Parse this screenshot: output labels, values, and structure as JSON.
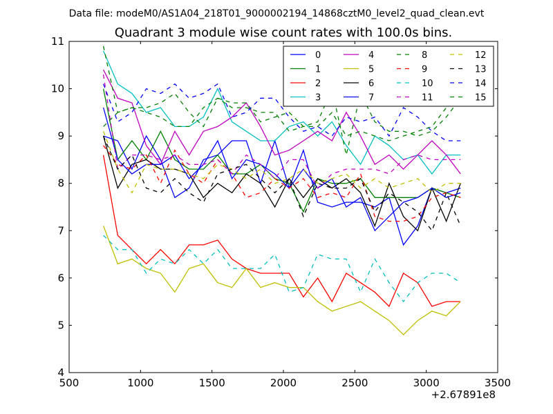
{
  "chart_data": {
    "type": "line",
    "suptitle": "Data file: modeM0/AS1A04_218T01_9000002194_14868cztM0_level2_quad_clean.evt",
    "title": "Quadrant 3 module wise count rates with 100.0s bins.",
    "xlabel": "",
    "ylabel": "",
    "x_offset_label": "+2.67891e8",
    "xlim": [
      500,
      3500
    ],
    "ylim": [
      4,
      11
    ],
    "x_ticks": [
      500,
      1000,
      1500,
      2000,
      2500,
      3000,
      3500
    ],
    "y_ticks": [
      4,
      5,
      6,
      7,
      8,
      9,
      10,
      11
    ],
    "legend_position": "top-right",
    "grid": false,
    "x": [
      740,
      840,
      940,
      1040,
      1140,
      1240,
      1340,
      1440,
      1540,
      1640,
      1740,
      1840,
      1940,
      2040,
      2140,
      2240,
      2340,
      2440,
      2540,
      2640,
      2740,
      2840,
      2940,
      3040,
      3140,
      3240
    ],
    "series": [
      {
        "name": "0",
        "color": "#0000ff",
        "dash": false,
        "values": [
          9.0,
          8.9,
          8.3,
          9.0,
          8.5,
          7.7,
          7.9,
          8.5,
          8.6,
          8.9,
          8.9,
          8.0,
          8.9,
          7.9,
          8.7,
          7.6,
          7.5,
          7.6,
          7.6,
          7.5,
          7.7,
          6.7,
          7.1,
          7.9,
          7.8,
          7.9
        ]
      },
      {
        "name": "1",
        "color": "#008000",
        "dash": false,
        "values": [
          10.0,
          8.5,
          8.9,
          8.5,
          9.1,
          8.5,
          8.3,
          8.3,
          8.6,
          8.2,
          8.2,
          8.4,
          8.1,
          8.0,
          7.4,
          8.1,
          8.0,
          8.0,
          8.1,
          7.7,
          7.7,
          7.7,
          7.7,
          7.9,
          7.8,
          7.7
        ]
      },
      {
        "name": "2",
        "color": "#ff0000",
        "dash": false,
        "values": [
          8.6,
          6.9,
          6.6,
          6.3,
          6.6,
          6.3,
          6.7,
          6.7,
          6.8,
          6.4,
          6.2,
          6.1,
          6.1,
          6.1,
          5.6,
          6.0,
          5.5,
          6.1,
          5.9,
          5.7,
          5.4,
          6.1,
          5.9,
          5.4,
          5.5,
          5.5
        ]
      },
      {
        "name": "3",
        "color": "#00bfbf",
        "dash": false,
        "values": [
          10.8,
          10.1,
          9.9,
          9.5,
          9.6,
          9.2,
          9.2,
          9.4,
          10.0,
          9.3,
          9.1,
          8.9,
          8.9,
          9.2,
          9.3,
          9.0,
          9.3,
          8.8,
          8.4,
          9.0,
          8.8,
          8.5,
          8.6,
          8.2,
          8.6,
          8.6
        ]
      },
      {
        "name": "4",
        "color": "#bf00bf",
        "dash": false,
        "values": [
          10.4,
          9.8,
          9.7,
          8.8,
          8.4,
          9.1,
          8.6,
          9.1,
          9.2,
          9.4,
          9.7,
          9.2,
          8.6,
          8.7,
          8.9,
          9.1,
          8.9,
          9.5,
          9.0,
          8.4,
          8.6,
          8.3,
          8.6,
          8.9,
          8.6,
          8.2
        ]
      },
      {
        "name": "5",
        "color": "#bfbf00",
        "dash": false,
        "values": [
          7.1,
          6.3,
          6.4,
          6.2,
          6.1,
          5.7,
          6.2,
          6.3,
          5.9,
          5.8,
          6.2,
          5.8,
          5.9,
          5.8,
          5.8,
          5.5,
          5.3,
          5.4,
          5.5,
          5.3,
          5.1,
          4.8,
          5.1,
          5.3,
          5.2,
          5.5
        ]
      },
      {
        "name": "6",
        "color": "#000000",
        "dash": false,
        "values": [
          9.0,
          7.9,
          8.4,
          8.5,
          8.3,
          8.3,
          8.2,
          7.7,
          8.0,
          7.8,
          8.2,
          8.0,
          7.5,
          8.1,
          7.7,
          8.1,
          7.9,
          8.1,
          7.8,
          7.1,
          8.0,
          7.3,
          7.0,
          7.9,
          7.2,
          8.0
        ]
      },
      {
        "name": "7",
        "color": "#0000ff",
        "dash": false,
        "values": [
          9.6,
          8.5,
          8.2,
          8.4,
          8.4,
          8.6,
          8.1,
          8.4,
          8.9,
          8.1,
          8.5,
          8.4,
          8.2,
          7.9,
          8.3,
          7.9,
          8.1,
          7.5,
          7.7,
          7.0,
          7.3,
          7.6,
          7.7,
          7.9,
          7.7,
          7.8
        ]
      },
      {
        "name": "8",
        "color": "#008000",
        "dash": true,
        "values": [
          9.2,
          9.5,
          9.6,
          9.6,
          9.7,
          9.9,
          9.5,
          9.2,
          9.8,
          9.7,
          9.7,
          9.3,
          9.4,
          9.5,
          9.2,
          9.3,
          10.0,
          8.6,
          9.9,
          9.3,
          9.1,
          9.1,
          9.0,
          9.1,
          9.4,
          9.8
        ]
      },
      {
        "name": "9",
        "color": "#ff0000",
        "dash": true,
        "values": [
          8.8,
          8.4,
          8.3,
          8.6,
          8.0,
          8.7,
          8.2,
          8.0,
          8.5,
          8.2,
          7.7,
          7.8,
          8.1,
          7.9,
          8.1,
          7.7,
          7.8,
          7.7,
          8.2,
          7.3,
          7.2,
          7.2,
          7.3,
          7.7,
          7.8,
          7.7
        ]
      },
      {
        "name": "10",
        "color": "#00bfbf",
        "dash": true,
        "values": [
          6.9,
          6.6,
          6.6,
          6.1,
          6.4,
          6.3,
          6.6,
          6.3,
          6.6,
          6.2,
          6.2,
          6.2,
          6.5,
          5.7,
          5.8,
          6.5,
          6.4,
          6.4,
          5.7,
          6.4,
          5.9,
          5.5,
          5.9,
          6.1,
          6.1,
          5.9
        ]
      },
      {
        "name": "11",
        "color": "#bf00bf",
        "dash": true,
        "values": [
          10.3,
          8.3,
          8.6,
          8.6,
          8.5,
          8.6,
          8.4,
          8.4,
          8.5,
          8.2,
          8.6,
          8.4,
          8.1,
          8.5,
          8.5,
          7.9,
          8.2,
          8.3,
          8.3,
          8.3,
          8.2,
          8.5,
          8.6,
          8.5,
          8.5,
          8.5
        ]
      },
      {
        "name": "12",
        "color": "#bfbf00",
        "dash": true,
        "values": [
          9.1,
          8.3,
          7.8,
          8.4,
          8.3,
          8.3,
          8.2,
          8.1,
          8.4,
          8.3,
          8.1,
          8.3,
          8.0,
          8.1,
          8.3,
          8.0,
          8.1,
          8.2,
          7.9,
          8.1,
          7.9,
          8.0,
          8.1,
          7.8,
          8.0,
          8.0
        ]
      },
      {
        "name": "13",
        "color": "#000000",
        "dash": true,
        "values": [
          9.0,
          8.3,
          8.6,
          7.9,
          7.8,
          8.1,
          7.8,
          7.6,
          8.2,
          8.3,
          8.4,
          8.1,
          7.8,
          8.1,
          7.3,
          8.0,
          7.9,
          7.9,
          8.1,
          7.4,
          7.8,
          7.6,
          7.4,
          7.0,
          7.8,
          7.1
        ]
      },
      {
        "name": "14",
        "color": "#0000ff",
        "dash": true,
        "values": [
          10.1,
          9.3,
          9.5,
          10.0,
          9.9,
          10.1,
          9.8,
          9.9,
          10.1,
          9.4,
          9.5,
          9.8,
          9.8,
          9.4,
          9.1,
          9.2,
          9.0,
          9.4,
          9.3,
          9.4,
          9.0,
          9.6,
          9.4,
          9.1,
          8.9,
          8.9
        ]
      },
      {
        "name": "15",
        "color": "#008000",
        "dash": true,
        "values": [
          10.9,
          9.5,
          9.6,
          9.5,
          9.4,
          9.2,
          9.2,
          9.6,
          9.8,
          9.6,
          9.6,
          9.5,
          9.5,
          9.1,
          9.2,
          9.2,
          9.5,
          9.0,
          9.1,
          9.0,
          8.9,
          9.0,
          9.1,
          9.2,
          9.6,
          9.8
        ]
      }
    ]
  }
}
